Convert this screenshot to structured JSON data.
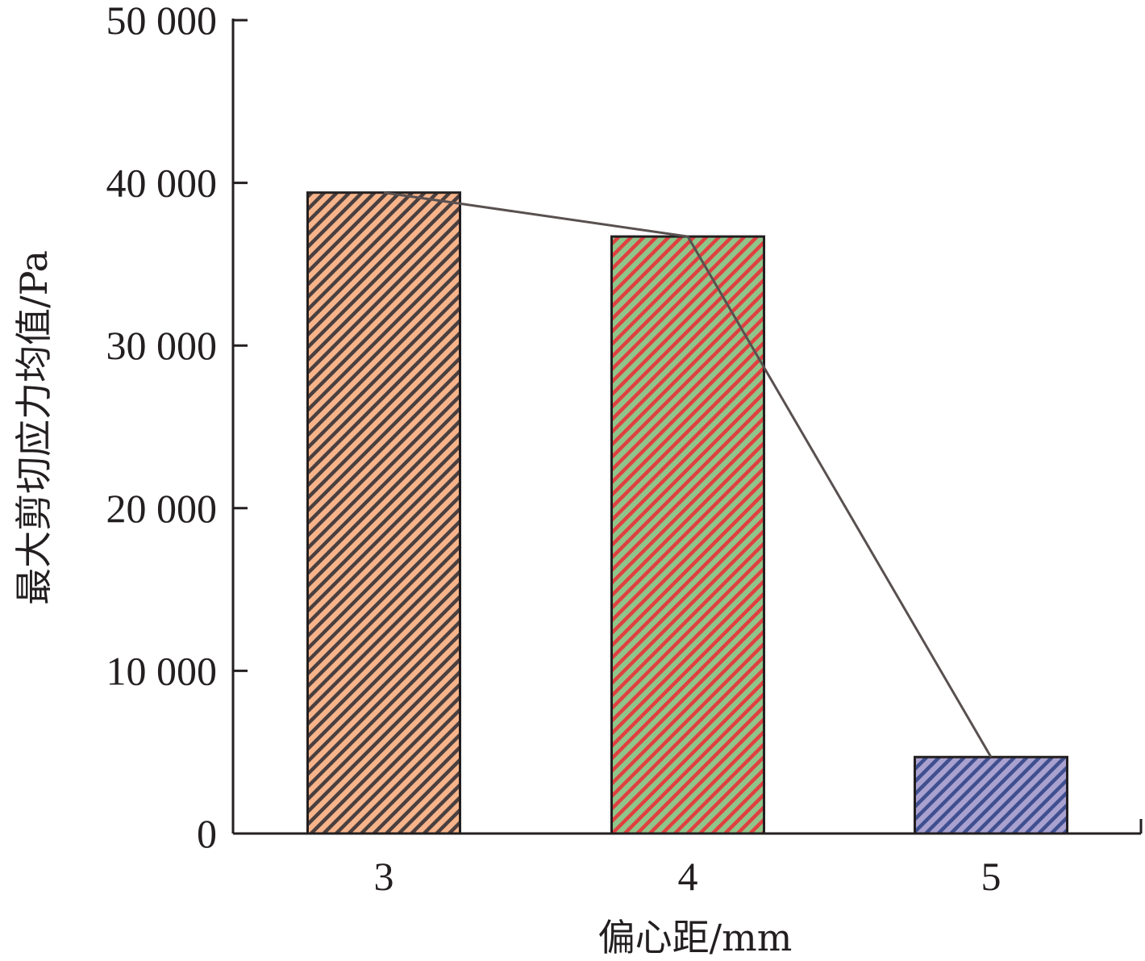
{
  "chart_data": {
    "type": "bar",
    "title": "",
    "xlabel": "偏心距/mm",
    "ylabel": "最大剪切应力均值/Pa",
    "categories": [
      "3",
      "4",
      "5"
    ],
    "values": [
      39400,
      36700,
      4700
    ],
    "ylim": [
      0,
      50000
    ],
    "yticks": [
      0,
      10000,
      20000,
      30000,
      40000,
      50000
    ],
    "ytick_labels": [
      "0",
      "10 000",
      "20 000",
      "30 000",
      "40 000",
      "50 000"
    ],
    "bar_fill_colors": [
      "#f7b48a",
      "#8fc58a",
      "#a9a1cf"
    ],
    "bar_hatch_colors": [
      "#4a3f3f",
      "#e04040",
      "#3f4f90"
    ],
    "trend_line": true,
    "trend_line_color": "#595050",
    "grid": false,
    "legend": "none"
  }
}
